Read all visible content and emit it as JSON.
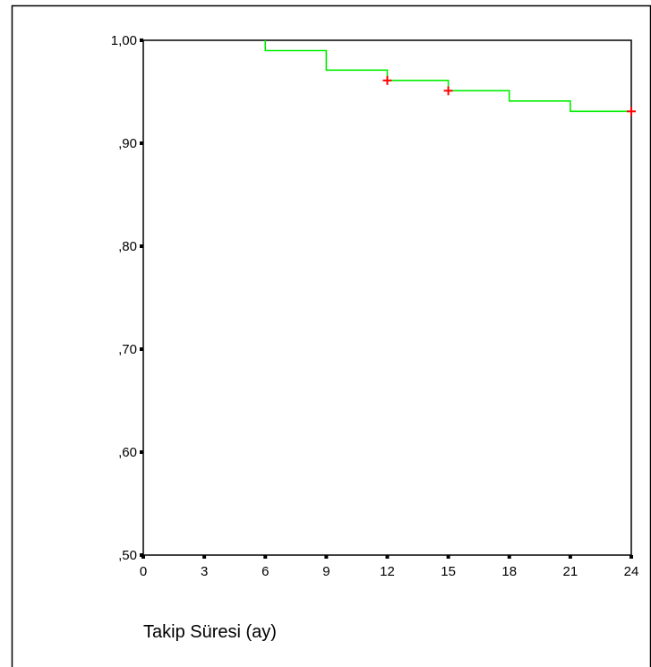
{
  "chart_data": {
    "type": "line",
    "title": "",
    "xlabel": "Takip Süresi (ay)",
    "ylabel": "",
    "xlim": [
      0,
      24
    ],
    "ylim": [
      0.5,
      1.0
    ],
    "x_ticks": [
      0,
      3,
      6,
      9,
      12,
      15,
      18,
      21,
      24
    ],
    "x_tick_labels": [
      "0",
      "3",
      "6",
      "9",
      "12",
      "15",
      "18",
      "21",
      "24"
    ],
    "y_ticks": [
      0.5,
      0.6,
      0.7,
      0.8,
      0.9,
      1.0
    ],
    "y_tick_labels": [
      ",50",
      ",60",
      ",70",
      ",80",
      ",90",
      "1,00"
    ],
    "grid": false,
    "series": [
      {
        "step": "post",
        "color": "#00ee00",
        "points": [
          {
            "x": 6,
            "y": 1.0
          },
          {
            "x": 6,
            "y": 0.99
          },
          {
            "x": 9,
            "y": 0.99
          },
          {
            "x": 9,
            "y": 0.971
          },
          {
            "x": 12,
            "y": 0.971
          },
          {
            "x": 12,
            "y": 0.961
          },
          {
            "x": 15,
            "y": 0.961
          },
          {
            "x": 15,
            "y": 0.951
          },
          {
            "x": 18,
            "y": 0.951
          },
          {
            "x": 18,
            "y": 0.941
          },
          {
            "x": 21,
            "y": 0.941
          },
          {
            "x": 21,
            "y": 0.931
          },
          {
            "x": 24,
            "y": 0.931
          }
        ],
        "censored": [
          {
            "x": 12,
            "y": 0.961
          },
          {
            "x": 15,
            "y": 0.951
          },
          {
            "x": 24,
            "y": 0.931
          }
        ],
        "censor_color": "#ff0000"
      }
    ]
  }
}
